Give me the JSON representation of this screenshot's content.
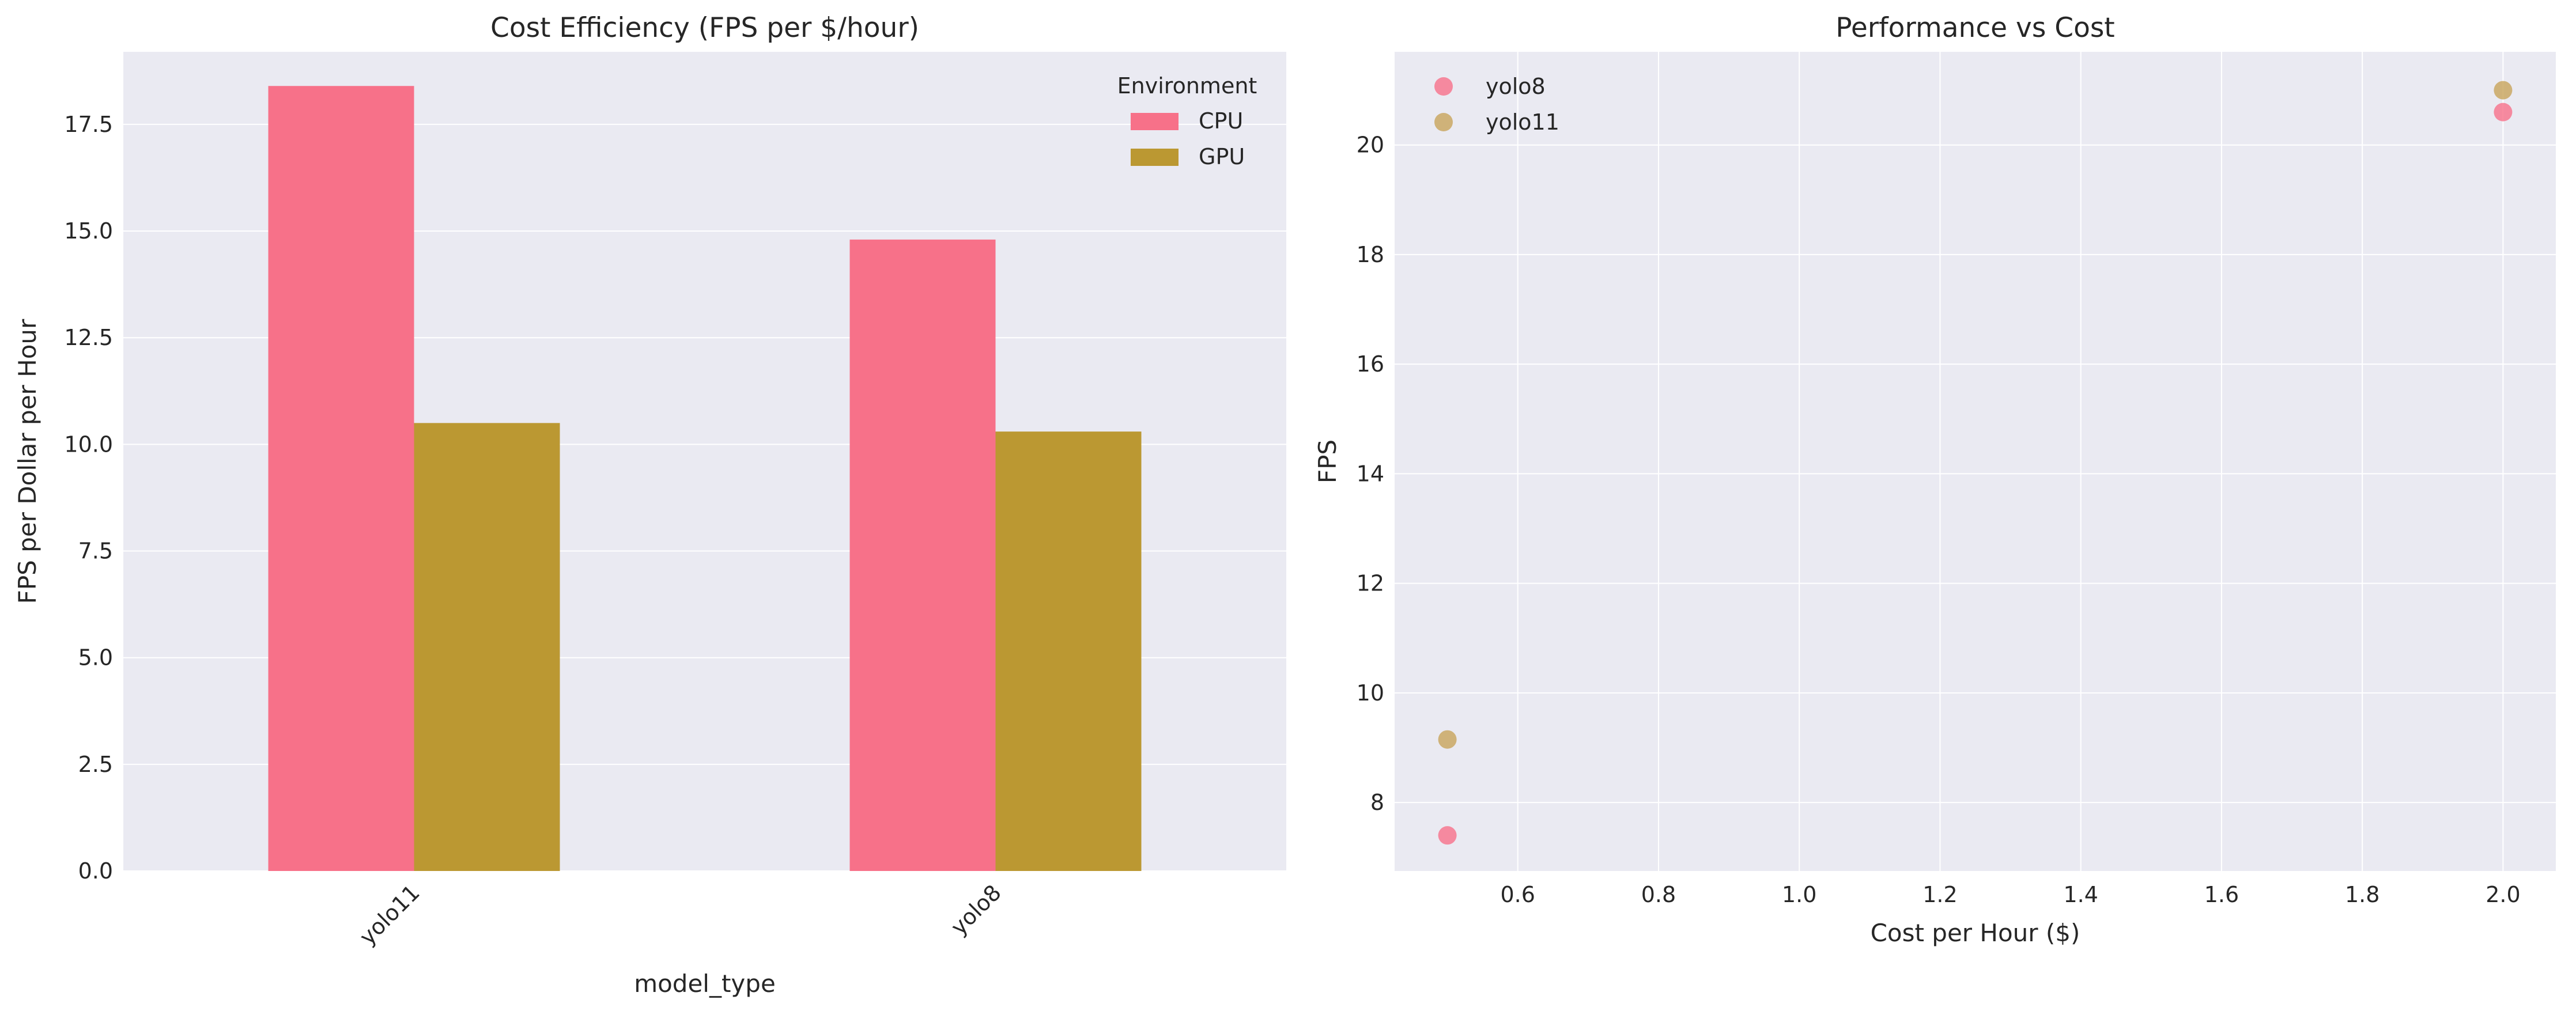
{
  "chart_data": [
    {
      "type": "bar",
      "title": "Cost Efficiency (FPS per $/hour)",
      "xlabel": "model_type",
      "ylabel": "FPS per Dollar per Hour",
      "categories": [
        "yolo11",
        "yolo8"
      ],
      "series": [
        {
          "name": "CPU",
          "values": [
            18.4,
            14.8
          ],
          "color": "#f77189"
        },
        {
          "name": "GPU",
          "values": [
            10.5,
            10.3
          ],
          "color": "#bb9832"
        }
      ],
      "ylim": [
        0,
        19.2
      ],
      "yticks": [
        0.0,
        2.5,
        5.0,
        7.5,
        10.0,
        12.5,
        15.0,
        17.5
      ],
      "ytick_labels": [
        "0.0",
        "2.5",
        "5.0",
        "7.5",
        "10.0",
        "12.5",
        "15.0",
        "17.5"
      ],
      "xtick_rotation": 45,
      "grid": true,
      "background": "#eaeaf2",
      "legend": {
        "title": "Environment",
        "placement": "top-right"
      }
    },
    {
      "type": "scatter",
      "title": "Performance vs Cost",
      "xlabel": "Cost per Hour ($)",
      "ylabel": "FPS",
      "series": [
        {
          "name": "yolo8",
          "color": "#f77189",
          "points": [
            [
              0.5,
              7.4
            ],
            [
              2.0,
              20.6
            ]
          ]
        },
        {
          "name": "yolo11",
          "color": "#c8a45a",
          "points": [
            [
              0.5,
              9.15
            ],
            [
              2.0,
              21.0
            ]
          ]
        }
      ],
      "xlim": [
        0.425,
        2.075
      ],
      "ylim": [
        6.75,
        21.7
      ],
      "xticks": [
        0.6,
        0.8,
        1.0,
        1.2,
        1.4,
        1.6,
        1.8,
        2.0
      ],
      "xtick_labels": [
        "0.6",
        "0.8",
        "1.0",
        "1.2",
        "1.4",
        "1.6",
        "1.8",
        "2.0"
      ],
      "yticks": [
        8,
        10,
        12,
        14,
        16,
        18,
        20
      ],
      "ytick_labels": [
        "8",
        "10",
        "12",
        "14",
        "16",
        "18",
        "20"
      ],
      "grid": true,
      "background": "#eaeaf2",
      "legend": {
        "placement": "top-left"
      }
    }
  ]
}
